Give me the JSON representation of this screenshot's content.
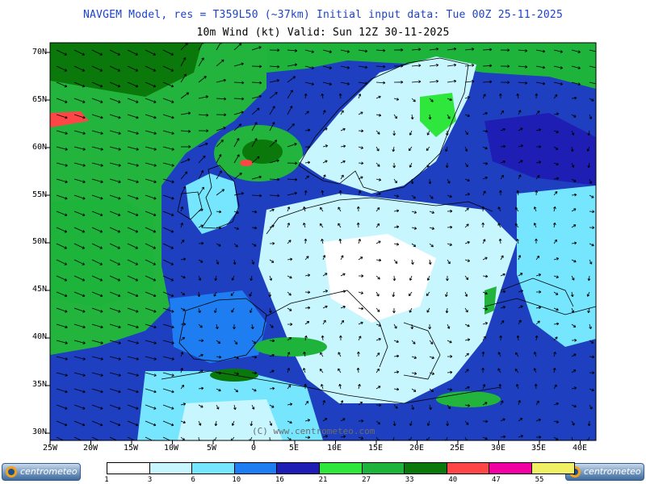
{
  "header": {
    "title_line1": "NAVGEM Model, res = T359L50 (~37km)    Initial input data: Tue 00Z 25-11-2025",
    "title_line2": "10m Wind (kt)  Valid: Sun 12Z 30-11-2025"
  },
  "map": {
    "lat_labels": [
      "70N",
      "65N",
      "60N",
      "55N",
      "50N",
      "45N",
      "40N",
      "35N",
      "30N"
    ],
    "lon_labels": [
      "25W",
      "20W",
      "15W",
      "10W",
      "5W",
      "0",
      "5E",
      "10E",
      "15E",
      "20E",
      "25E",
      "30E",
      "35E",
      "40E"
    ],
    "copyright": "(C) www.centrometeo.com",
    "colors": {
      "background": "#1e3fbf",
      "ocean_wind": "#22b43c",
      "land_calm": "#c8f6ff",
      "coastline": "#000000"
    }
  },
  "legend": {
    "labels": [
      "1",
      "3",
      "6",
      "10",
      "16",
      "21",
      "27",
      "33",
      "40",
      "47",
      "55"
    ],
    "colors": [
      "#ffffff",
      "#c8f6ff",
      "#76e6ff",
      "#1e7df0",
      "#1e1eb4",
      "#2ee63c",
      "#1eb43c",
      "#0a780a",
      "#ff4646",
      "#f000a0",
      "#f0f064"
    ],
    "units": "kt"
  },
  "logos": {
    "left_text": "centrometeo",
    "right_text": "centrometeo"
  }
}
